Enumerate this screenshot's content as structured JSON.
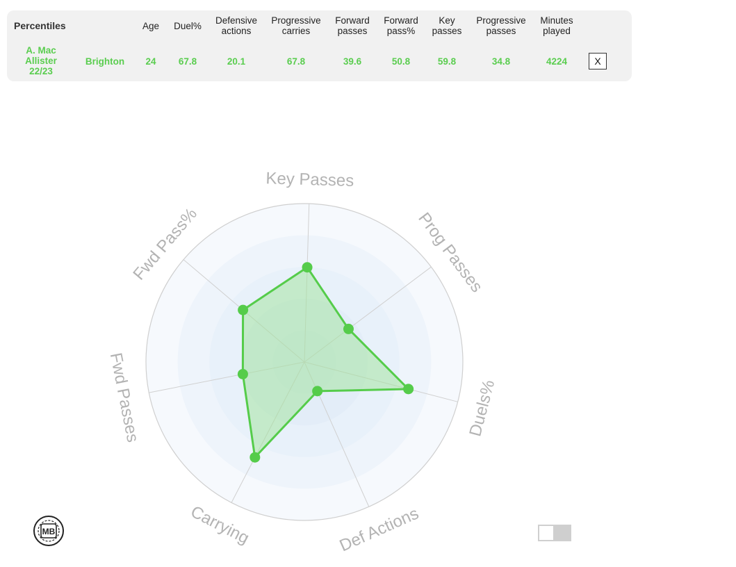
{
  "table": {
    "title": "Percentiles",
    "headers": [
      {
        "key": "age",
        "lines": [
          "Age"
        ]
      },
      {
        "key": "duel",
        "lines": [
          "Duel%"
        ]
      },
      {
        "key": "def",
        "lines": [
          "Defensive",
          "actions"
        ]
      },
      {
        "key": "prog_carries",
        "lines": [
          "Progressive",
          "carries"
        ]
      },
      {
        "key": "fwd_passes",
        "lines": [
          "Forward",
          "passes"
        ]
      },
      {
        "key": "fwd_pass_pct",
        "lines": [
          "Forward",
          "pass%"
        ]
      },
      {
        "key": "key_passes",
        "lines": [
          "Key",
          "passes"
        ]
      },
      {
        "key": "prog_passes",
        "lines": [
          "Progressive",
          "passes"
        ]
      },
      {
        "key": "minutes",
        "lines": [
          "Minutes",
          "played"
        ]
      }
    ],
    "row": {
      "player_lines": [
        "A. Mac",
        "Allister",
        "22/23"
      ],
      "team": "Brighton",
      "values": [
        "24",
        "67.8",
        "20.1",
        "67.8",
        "39.6",
        "50.8",
        "59.8",
        "34.8",
        "4224"
      ]
    },
    "close_label": "X"
  },
  "chart_data": {
    "type": "radar",
    "axes": [
      "Key Passes",
      "Prog Passes",
      "Duels%",
      "Def Actions",
      "Carrying",
      "Fwd Passes",
      "Fwd Pass%"
    ],
    "values": [
      59.8,
      34.8,
      67.8,
      20.1,
      67.8,
      39.6,
      50.8
    ],
    "range": [
      0,
      100
    ],
    "rings": 5,
    "series_color": "#55cc4a",
    "fill_color": "#9fe39a"
  },
  "logo": {
    "text": "MB",
    "icon": "football-logo-icon"
  },
  "toggle": {
    "state": "off"
  }
}
